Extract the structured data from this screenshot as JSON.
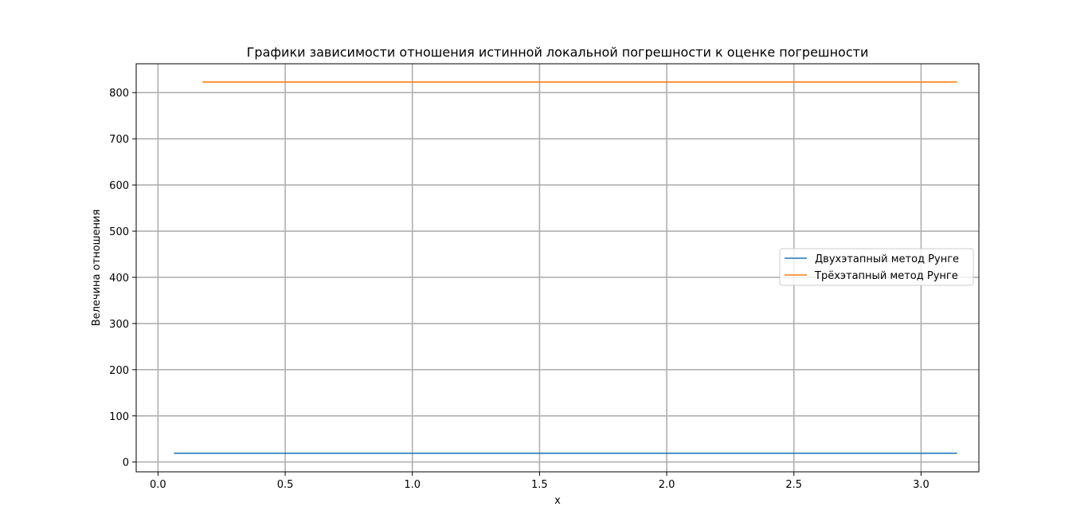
{
  "chart_data": {
    "type": "line",
    "title": "Графики зависимости отношения истинной локальной погрешности к оценке погрешности",
    "xlabel": "x",
    "ylabel": "Велечина отношения",
    "xlim": [
      -0.0857,
      3.2273
    ],
    "ylim": [
      -21.2,
      862.5
    ],
    "xticks": [
      0.0,
      0.5,
      1.0,
      1.5,
      2.0,
      2.5,
      3.0
    ],
    "xtick_labels": [
      "0.0",
      "0.5",
      "1.0",
      "1.5",
      "2.0",
      "2.5",
      "3.0"
    ],
    "yticks": [
      0,
      100,
      200,
      300,
      400,
      500,
      600,
      700,
      800
    ],
    "ytick_labels": [
      "0",
      "100",
      "200",
      "300",
      "400",
      "500",
      "600",
      "700",
      "800"
    ],
    "grid": true,
    "legend_position": "center-right",
    "series": [
      {
        "name": "Двухэтапный метод Рунге",
        "color": "#1f77b4",
        "x": [
          0.0628,
          3.1416
        ],
        "y": [
          19,
          19
        ]
      },
      {
        "name": "Трёхэтапный метод Рунге",
        "color": "#ff7f0e",
        "x": [
          0.1745,
          3.1416
        ],
        "y": [
          823,
          823
        ]
      }
    ]
  }
}
